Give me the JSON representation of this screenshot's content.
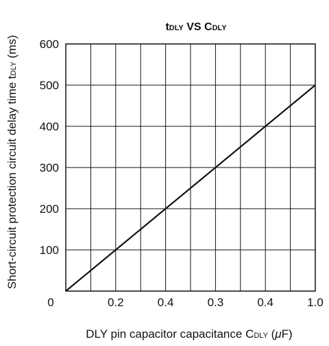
{
  "chart_data": {
    "type": "line",
    "title": {
      "main": "t",
      "sub1": "DLY",
      "vs": " VS ",
      "main2": "C",
      "sub2": "DLY"
    },
    "xlabel": {
      "main": "DLY pin capacitor capacitance  C",
      "sub": "DLY",
      "open": " (",
      "mu": "μ",
      "unit": "F)"
    },
    "ylabel": {
      "main": "Short-circuit protection circuit delay time  t",
      "sub": "DLY",
      "unit": " (ms)"
    },
    "x_tick_labels": [
      "0",
      "0.2",
      "0.4",
      "0.3",
      "0.4",
      "1.0"
    ],
    "y_tick_labels": [
      "100",
      "200",
      "300",
      "400",
      "500",
      "600"
    ],
    "xlim": [
      0,
      1.0
    ],
    "ylim": [
      0,
      600
    ],
    "x_major_gridlines": 10,
    "y_major_gridlines": 6,
    "grid": true,
    "series": [
      {
        "x": [
          0,
          1.0
        ],
        "y": [
          0,
          500
        ]
      }
    ]
  }
}
